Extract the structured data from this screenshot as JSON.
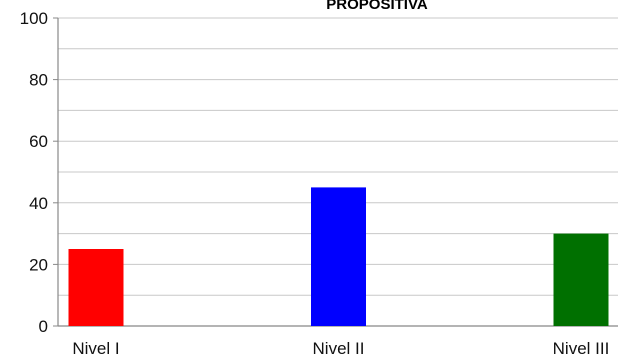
{
  "chart_data": {
    "type": "bar",
    "title": "PROPOSITIVA",
    "xlabel": "",
    "ylabel": "",
    "categories": [
      "Nivel I",
      "Nivel II",
      "Nivel III"
    ],
    "values": [
      25,
      45,
      30
    ],
    "colors": [
      "#ff0000",
      "#0000ff",
      "#007000"
    ],
    "ylim": [
      0,
      100
    ],
    "yticks": [
      "0",
      "20",
      "40",
      "60",
      "80",
      "100"
    ],
    "grid": true,
    "legend": "none"
  }
}
